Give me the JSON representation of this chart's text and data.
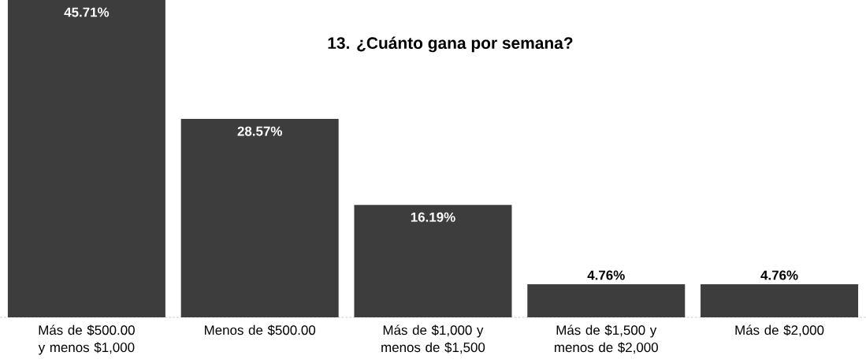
{
  "chart_data": {
    "type": "bar",
    "title": "13. ¿Cuánto gana por semana?",
    "categories": [
      "Más de $500.00 y menos $1,000",
      "Menos de $500.00",
      "Más de $1,000 y menos de $1,500",
      "Más de $1,500 y menos de $2,000",
      "Más de $2,000"
    ],
    "values": [
      45.71,
      28.57,
      16.19,
      4.76,
      4.76
    ],
    "value_labels": [
      "45.71%",
      "28.57%",
      "16.19%",
      "4.76%",
      "4.76%"
    ],
    "color": "#3d3d3d"
  }
}
